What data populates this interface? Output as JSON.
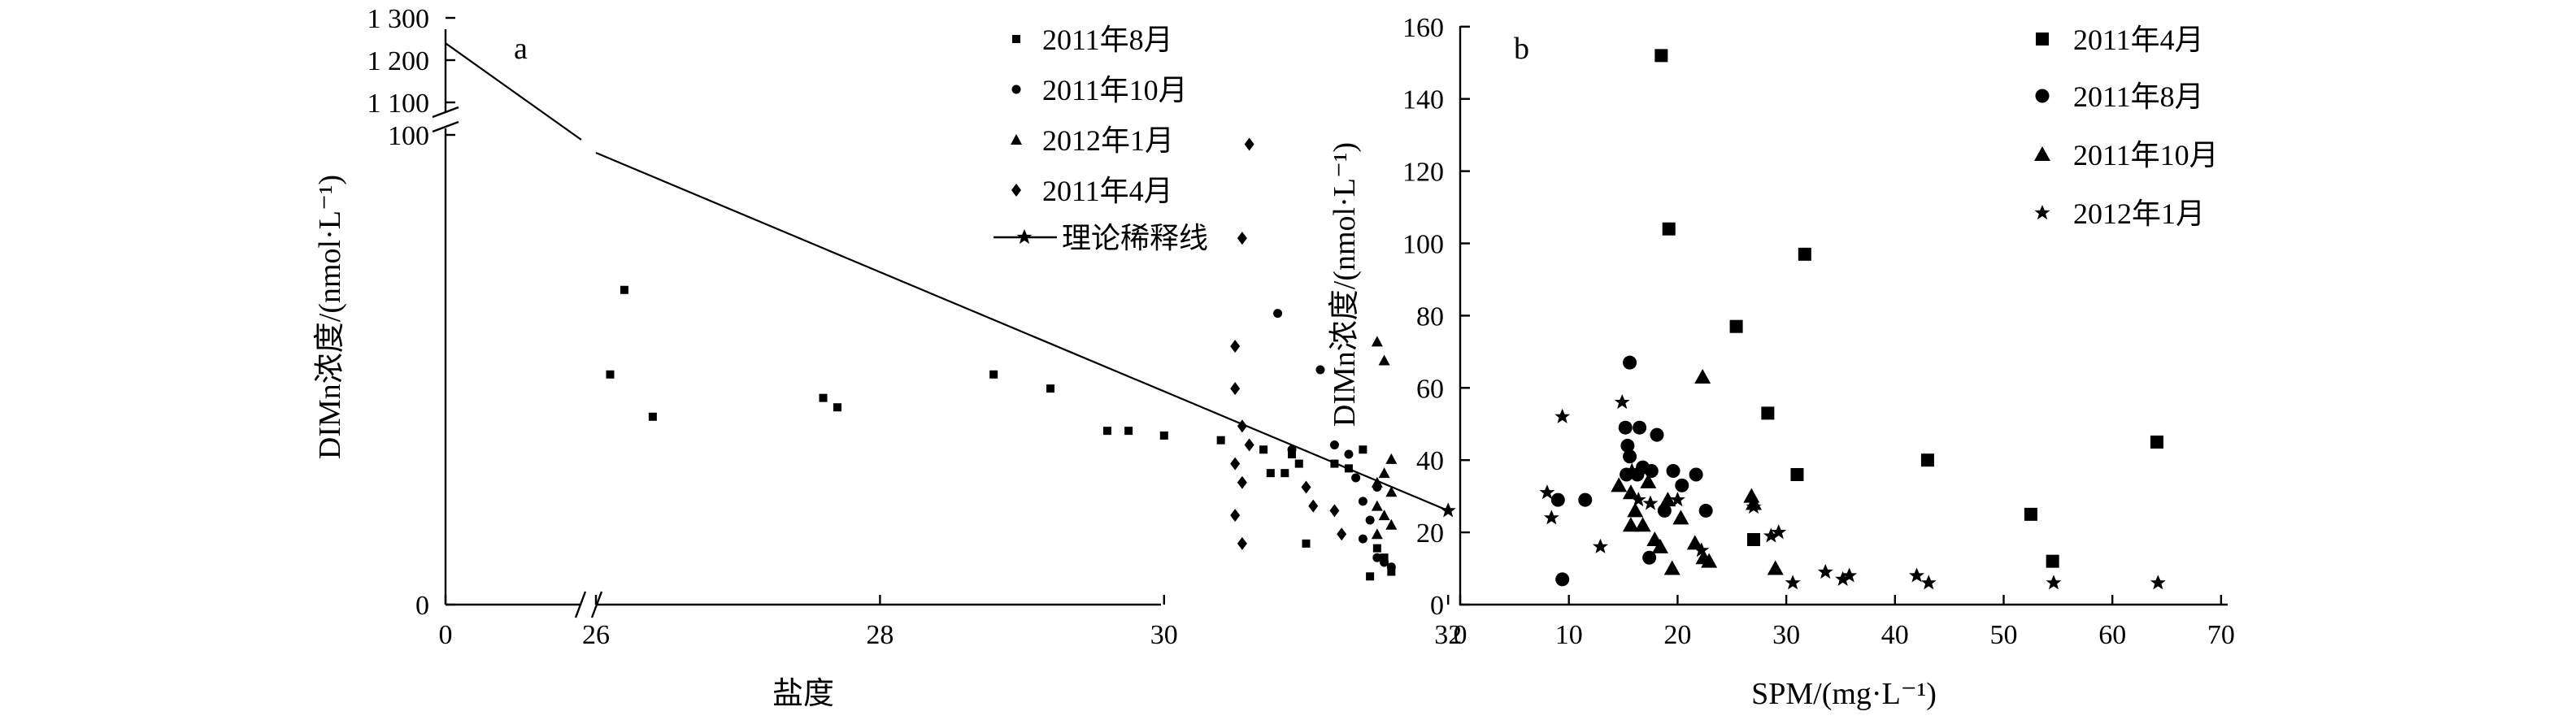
{
  "chart_data": [
    {
      "type": "scatter",
      "panel_label": "a",
      "xlabel": "盐度",
      "ylabel": "DIMn浓度/(nmol·L⁻¹)",
      "x_break": [
        0,
        26
      ],
      "xlim": [
        26,
        33
      ],
      "x_ticks": [
        "0",
        "26",
        "28",
        "30",
        "32"
      ],
      "ylim_lower": [
        0,
        100
      ],
      "ylim_upper": [
        1100,
        1300
      ],
      "y_ticks_lower": [
        "0",
        "100"
      ],
      "y_ticks_upper": [
        "1 100",
        "1 200",
        "1 300"
      ],
      "legend_position": "top-right",
      "series": [
        {
          "name": "2011年8月",
          "marker": "square-small",
          "points": [
            [
              26.2,
              67
            ],
            [
              26.1,
              49
            ],
            [
              26.4,
              40
            ],
            [
              27.6,
              44
            ],
            [
              27.7,
              42
            ],
            [
              28.8,
              49
            ],
            [
              29.2,
              46
            ],
            [
              29.6,
              37
            ],
            [
              29.75,
              37
            ],
            [
              30.0,
              36
            ],
            [
              30.4,
              35
            ],
            [
              30.7,
              33
            ],
            [
              30.9,
              32
            ],
            [
              30.95,
              30
            ],
            [
              31.2,
              30
            ],
            [
              31.3,
              29
            ],
            [
              31.4,
              33
            ],
            [
              30.75,
              28
            ],
            [
              30.85,
              28
            ],
            [
              31.0,
              13
            ],
            [
              31.5,
              12
            ],
            [
              31.55,
              10
            ],
            [
              31.6,
              7
            ],
            [
              31.45,
              6
            ]
          ]
        },
        {
          "name": "2011年10月",
          "marker": "circle-small",
          "points": [
            [
              30.8,
              62
            ],
            [
              31.1,
              50
            ],
            [
              30.9,
              33
            ],
            [
              31.2,
              34
            ],
            [
              31.3,
              32
            ],
            [
              31.35,
              27
            ],
            [
              31.4,
              22
            ],
            [
              31.5,
              25
            ],
            [
              31.45,
              18
            ],
            [
              31.4,
              14
            ],
            [
              31.5,
              10
            ],
            [
              31.55,
              9
            ],
            [
              31.6,
              8
            ]
          ]
        },
        {
          "name": "2012年1月",
          "marker": "triangle-small",
          "points": [
            [
              31.5,
              56
            ],
            [
              31.55,
              52
            ],
            [
              31.6,
              31
            ],
            [
              31.55,
              28
            ],
            [
              31.5,
              26
            ],
            [
              31.6,
              24
            ],
            [
              31.5,
              21
            ],
            [
              31.55,
              19
            ],
            [
              31.6,
              17
            ],
            [
              31.5,
              15
            ]
          ]
        },
        {
          "name": "2011年4月",
          "marker": "diamond",
          "points": [
            [
              30.6,
              98
            ],
            [
              30.55,
              78
            ],
            [
              30.5,
              55
            ],
            [
              30.5,
              46
            ],
            [
              30.55,
              38
            ],
            [
              30.6,
              34
            ],
            [
              30.5,
              30
            ],
            [
              30.55,
              26
            ],
            [
              30.5,
              19
            ],
            [
              30.55,
              13
            ],
            [
              31.0,
              25
            ],
            [
              31.05,
              21
            ],
            [
              31.2,
              20
            ],
            [
              31.25,
              15
            ]
          ]
        }
      ],
      "theory_line": {
        "name": "理论稀释线",
        "marker": "star",
        "from": [
          0,
          1240
        ],
        "to": [
          32,
          20
        ]
      }
    },
    {
      "type": "scatter",
      "panel_label": "b",
      "xlabel": "SPM/(mg·L⁻¹)",
      "ylabel": "DIMn浓度/(nmol·L⁻¹)",
      "xlim": [
        0,
        70
      ],
      "ylim": [
        0,
        160
      ],
      "x_ticks": [
        "0",
        "10",
        "20",
        "30",
        "40",
        "50",
        "60",
        "70"
      ],
      "y_ticks": [
        "0",
        "20",
        "40",
        "60",
        "80",
        "100",
        "120",
        "140",
        "160"
      ],
      "legend_position": "top-right",
      "series": [
        {
          "name": "2011年4月",
          "marker": "square",
          "points": [
            [
              18.5,
              152
            ],
            [
              19.2,
              104
            ],
            [
              31.7,
              97
            ],
            [
              25.4,
              77
            ],
            [
              28.3,
              53
            ],
            [
              64.1,
              45
            ],
            [
              43.0,
              40
            ],
            [
              31.0,
              36
            ],
            [
              52.5,
              25
            ],
            [
              54.5,
              12
            ],
            [
              27.0,
              18
            ]
          ]
        },
        {
          "name": "2011年8月",
          "marker": "circle",
          "points": [
            [
              15.6,
              67
            ],
            [
              9.0,
              29
            ],
            [
              9.4,
              7
            ],
            [
              11.5,
              29
            ],
            [
              15.2,
              49
            ],
            [
              16.5,
              49
            ],
            [
              15.4,
              44
            ],
            [
              15.6,
              41
            ],
            [
              15.3,
              36
            ],
            [
              16.3,
              36
            ],
            [
              16.8,
              38
            ],
            [
              17.6,
              37
            ],
            [
              18.1,
              47
            ],
            [
              18.8,
              26
            ],
            [
              19.6,
              37
            ],
            [
              20.4,
              33
            ],
            [
              21.7,
              36
            ],
            [
              22.6,
              26
            ],
            [
              17.4,
              13
            ]
          ]
        },
        {
          "name": "2011年10月",
          "marker": "triangle",
          "points": [
            [
              22.3,
              63
            ],
            [
              14.6,
              33
            ],
            [
              15.7,
              31
            ],
            [
              16.1,
              26
            ],
            [
              15.7,
              22
            ],
            [
              16.8,
              22
            ],
            [
              17.3,
              34
            ],
            [
              17.9,
              18
            ],
            [
              18.4,
              16
            ],
            [
              19.5,
              10
            ],
            [
              19.1,
              29
            ],
            [
              20.3,
              24
            ],
            [
              21.6,
              17
            ],
            [
              22.4,
              13
            ],
            [
              22.9,
              12
            ],
            [
              26.8,
              30
            ],
            [
              27.0,
              28
            ],
            [
              29.0,
              10
            ]
          ]
        },
        {
          "name": "2012年1月",
          "marker": "star",
          "points": [
            [
              9.4,
              52
            ],
            [
              8.0,
              31
            ],
            [
              8.4,
              24
            ],
            [
              12.9,
              16
            ],
            [
              14.9,
              56
            ],
            [
              15.8,
              37
            ],
            [
              16.4,
              29
            ],
            [
              17.5,
              28
            ],
            [
              20.0,
              29
            ],
            [
              22.2,
              15
            ],
            [
              27.0,
              27
            ],
            [
              28.6,
              19
            ],
            [
              29.3,
              20
            ],
            [
              30.6,
              6
            ],
            [
              33.6,
              9
            ],
            [
              35.2,
              7
            ],
            [
              35.8,
              8
            ],
            [
              42.0,
              8
            ],
            [
              43.1,
              6
            ],
            [
              54.6,
              6
            ],
            [
              64.2,
              6
            ]
          ]
        }
      ]
    }
  ]
}
